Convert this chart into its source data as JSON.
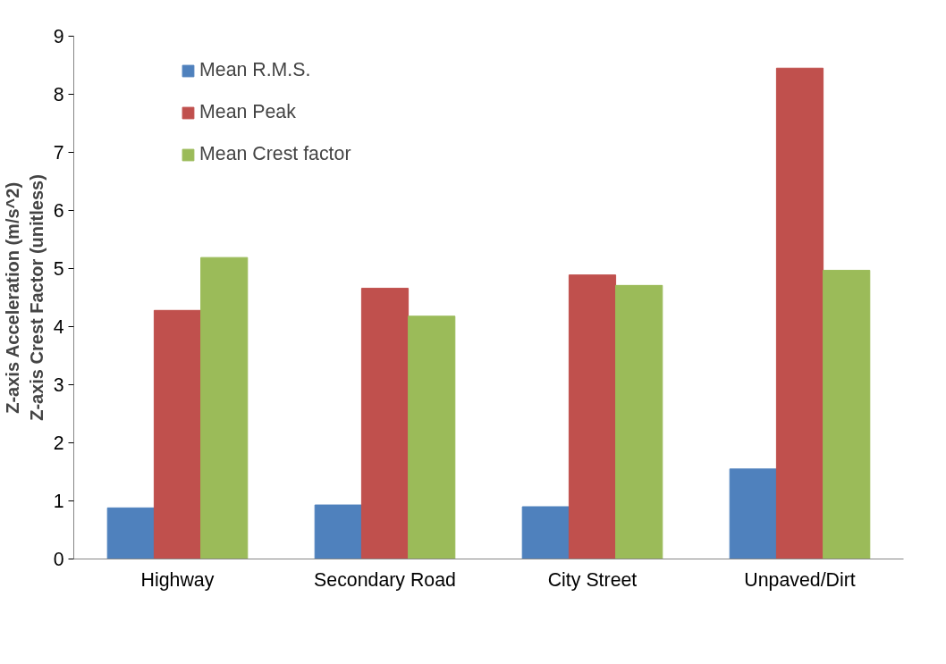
{
  "chart_data": {
    "type": "bar",
    "ylabel": "Z-axis Acceleration (m/s^2)\nZ-axis Crest Factor (unitless)",
    "categories": [
      "Highway",
      "Secondary Road",
      "City Street",
      "Unpaved/Dirt"
    ],
    "series": [
      {
        "name": "Mean R.M.S.",
        "color": "#4f81bd",
        "values": [
          0.88,
          0.93,
          0.9,
          1.55
        ]
      },
      {
        "name": "Mean Peak",
        "color": "#c0504d",
        "values": [
          4.28,
          4.66,
          4.89,
          8.45
        ]
      },
      {
        "name": "Mean Crest factor",
        "color": "#9bbb59",
        "values": [
          5.19,
          4.18,
          4.71,
          4.97
        ]
      }
    ],
    "ylim": [
      0,
      9
    ],
    "yticks": [
      0,
      1,
      2,
      3,
      4,
      5,
      6,
      7,
      8,
      9
    ],
    "grid": false,
    "legend": "top left"
  }
}
